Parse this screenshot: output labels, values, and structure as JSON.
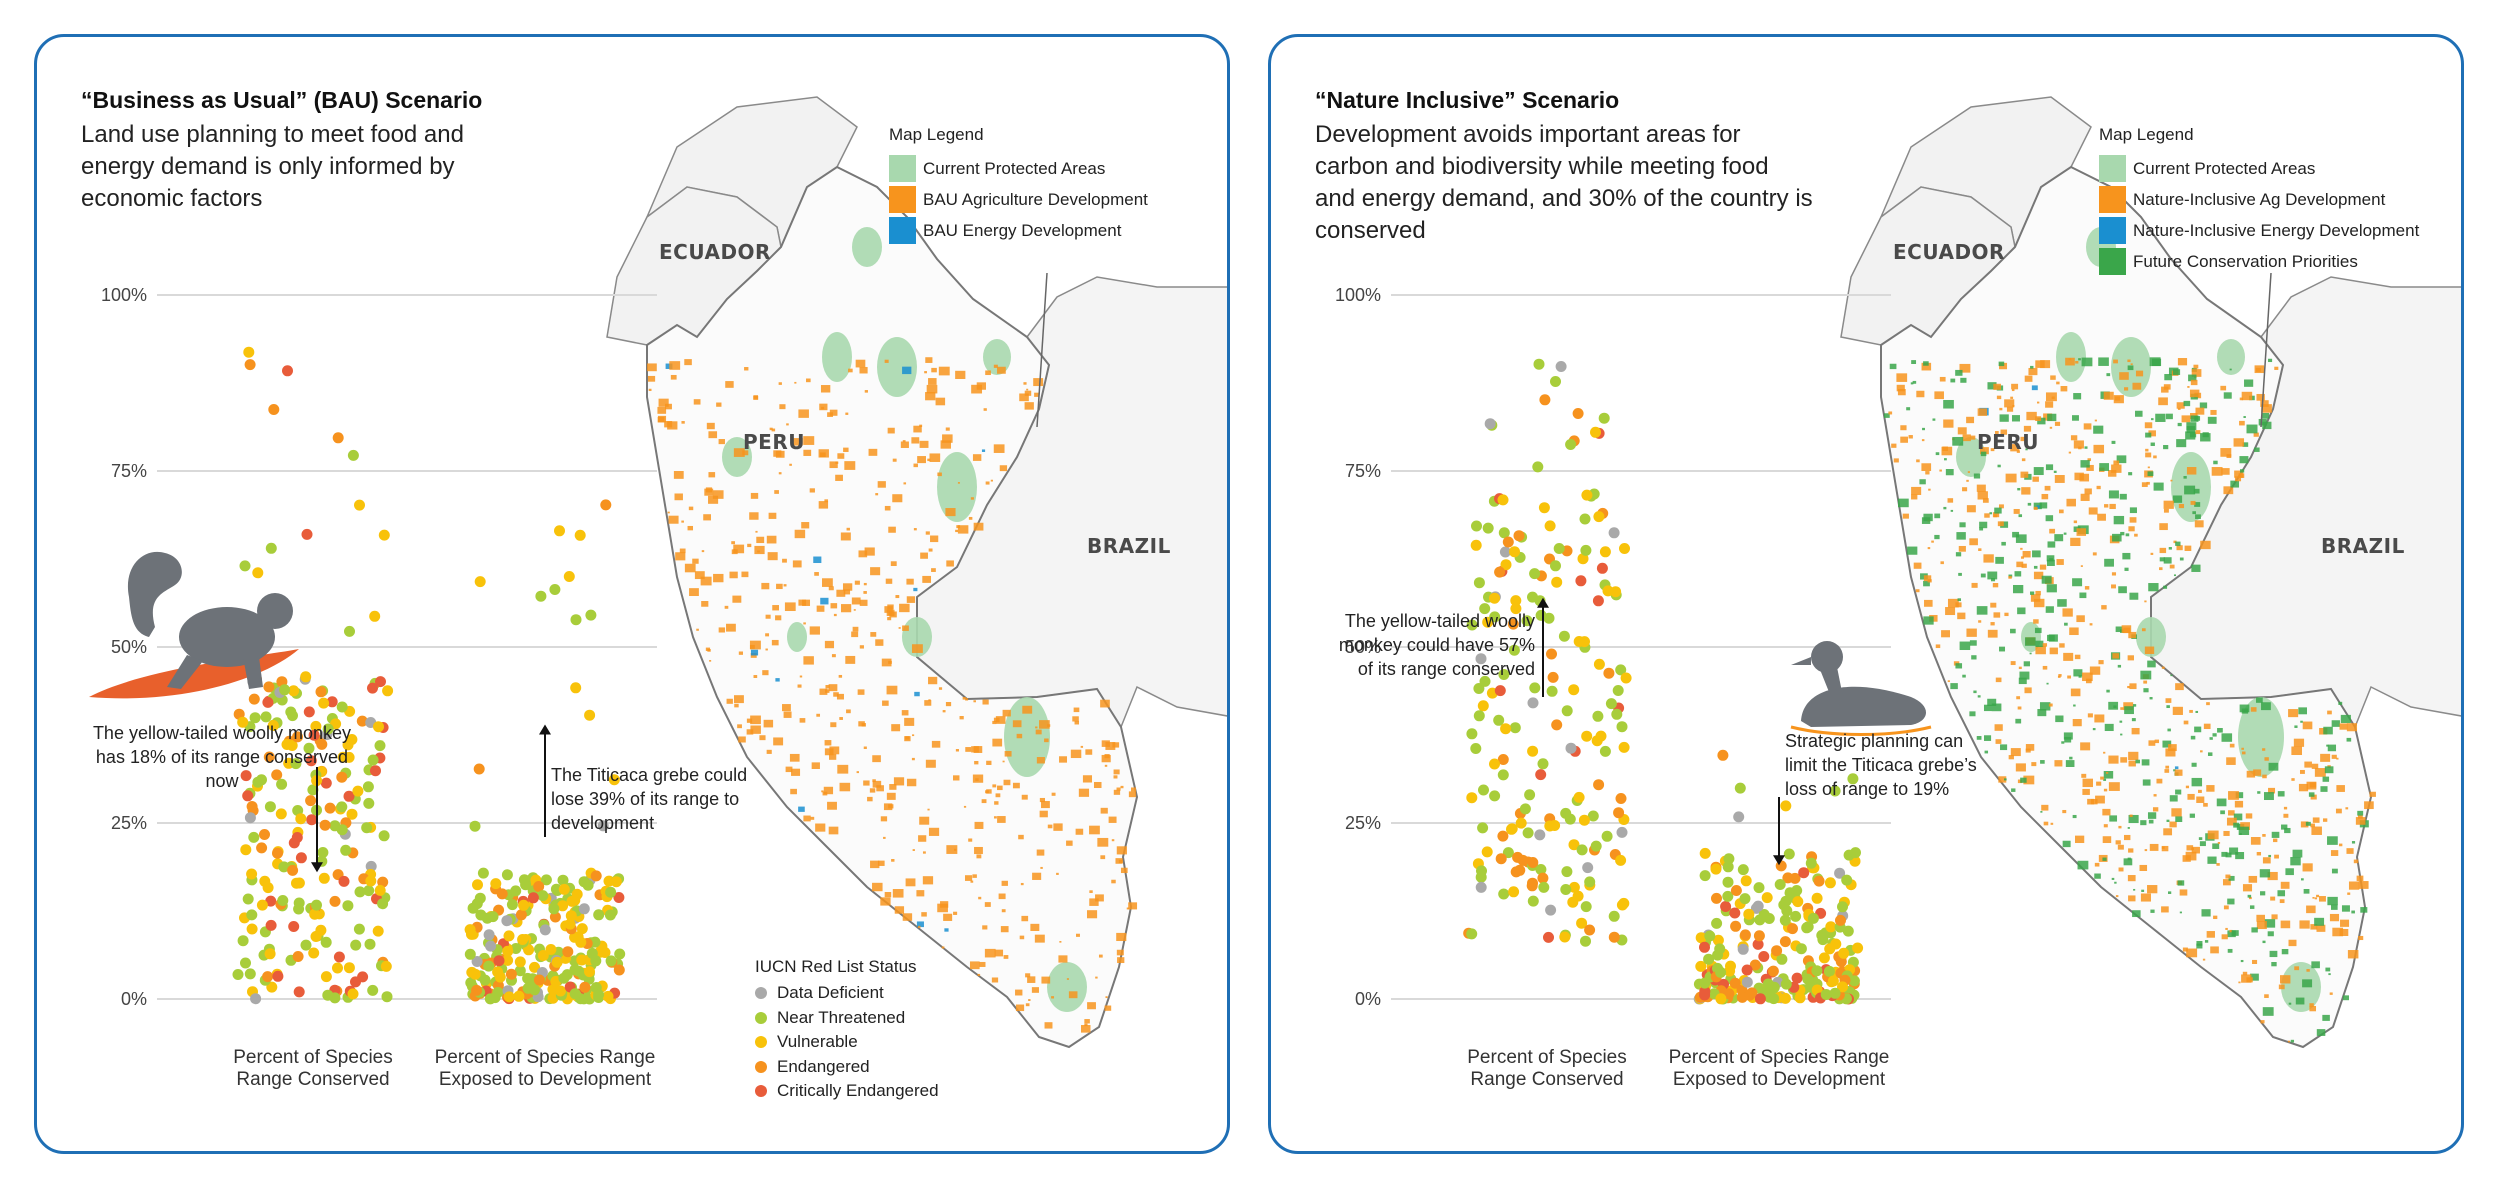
{
  "panels": [
    {
      "title": "“Business as Usual” (BAU) Scenario",
      "description": "Land use planning to meet food and energy demand is only informed by economic factors",
      "map_legend": {
        "title": "Map Legend",
        "items": [
          {
            "label": "Current Protected Areas",
            "color": "#a8d8ae"
          },
          {
            "label": "BAU Agriculture Development",
            "color": "#f7941d"
          },
          {
            "label": "BAU Energy Development",
            "color": "#1a8fd0"
          }
        ]
      },
      "country_labels": [
        "ECUADOR",
        "PERU",
        "BRAZIL"
      ],
      "annotations": [
        "The yellow-tailed woolly monkey has 18% of its range conserved now",
        "The Titicaca grebe could lose 39% of its range to development"
      ],
      "icon": "monkey-on-surfboard-icon"
    },
    {
      "title": "“Nature Inclusive” Scenario",
      "description": "Development avoids important areas for carbon and biodiversity while meeting food and energy demand, and 30% of the country is conserved",
      "map_legend": {
        "title": "Map Legend",
        "items": [
          {
            "label": "Current Protected Areas",
            "color": "#a8d8ae"
          },
          {
            "label": "Nature-Inclusive Ag Development",
            "color": "#f7941d"
          },
          {
            "label": "Nature-Inclusive Energy Development",
            "color": "#1a8fd0"
          },
          {
            "label": "Future Conservation Priorities",
            "color": "#3aa64a"
          }
        ]
      },
      "country_labels": [
        "ECUADOR",
        "PERU",
        "BRAZIL"
      ],
      "annotations": [
        "The yellow-tailed woolly monkey could have 57% of its range conserved",
        "Strategic planning can limit the Titicaca grebe’s loss of range to 19%"
      ],
      "icon": "grebe-duck-icon"
    }
  ],
  "iucn_legend": {
    "title": "IUCN Red List Status",
    "items": [
      {
        "label": "Data Deficient",
        "color": "#a9a9a9"
      },
      {
        "label": "Near Threatened",
        "color": "#a8cd3a"
      },
      {
        "label": "Vulnerable",
        "color": "#f8c20a"
      },
      {
        "label": "Endangered",
        "color": "#f6921e"
      },
      {
        "label": "Critically Endangered",
        "color": "#e85c3a"
      }
    ]
  },
  "chart_data": [
    {
      "type": "scatter",
      "subtitle": "“Business as Usual” (BAU) Scenario",
      "categories": [
        "Percent of Species Range Conserved",
        "Percent of Species Range Exposed to Development"
      ],
      "category_label_lines": [
        [
          "Percent of Species",
          "Range Conserved"
        ],
        [
          "Percent of Species Range",
          "Exposed to Development"
        ]
      ],
      "y_ticks": [
        "100%",
        "75%",
        "50%",
        "25%",
        "0%"
      ],
      "ylim": [
        0,
        100
      ],
      "grid": true,
      "highlighted_points": [
        {
          "category": 0,
          "label": "yellow-tailed woolly monkey",
          "value": 18
        },
        {
          "category": 1,
          "label": "Titicaca grebe",
          "value": 39
        }
      ],
      "distributions": [
        {
          "category": 0,
          "median_approx": 17,
          "range_approx": [
            0,
            92
          ]
        },
        {
          "category": 1,
          "median_approx": 8,
          "range_approx": [
            0,
            75
          ]
        }
      ]
    },
    {
      "type": "scatter",
      "subtitle": "“Nature Inclusive” Scenario",
      "categories": [
        "Percent of Species Range Conserved",
        "Percent of Species Range Exposed to Development"
      ],
      "category_label_lines": [
        [
          "Percent of Species",
          "Range Conserved"
        ],
        [
          "Percent of Species Range",
          "Exposed to Development"
        ]
      ],
      "y_ticks": [
        "100%",
        "75%",
        "50%",
        "25%",
        "0%"
      ],
      "ylim": [
        0,
        100
      ],
      "grid": true,
      "highlighted_points": [
        {
          "category": 0,
          "label": "yellow-tailed woolly monkey",
          "value": 57
        },
        {
          "category": 1,
          "label": "Titicaca grebe",
          "value": 19
        }
      ],
      "distributions": [
        {
          "category": 0,
          "median_approx": 40,
          "range_approx": [
            4,
            92
          ]
        },
        {
          "category": 1,
          "median_approx": 6,
          "range_approx": [
            0,
            35
          ]
        }
      ]
    }
  ]
}
